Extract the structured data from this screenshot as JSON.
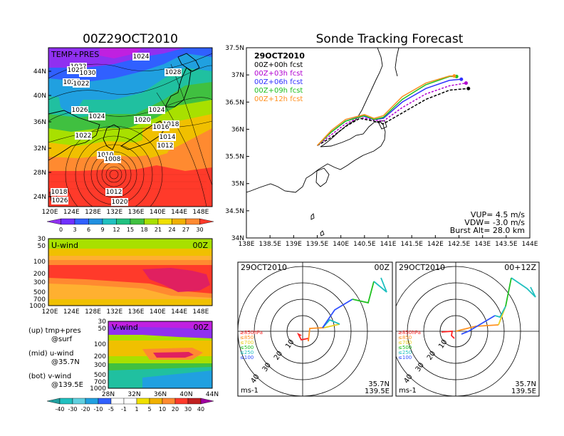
{
  "left_title": "00Z29OCT2010",
  "right_title": "Sonde Tracking Forecast",
  "temp_panel": {
    "label": "TEMP+PRES",
    "ylabels": [
      "44N",
      "40N",
      "36N",
      "32N",
      "28N",
      "24N"
    ],
    "xlabels": [
      "120E",
      "124E",
      "128E",
      "132E",
      "136E",
      "140E",
      "144E",
      "148E"
    ],
    "isobars": [
      "1024",
      "1022",
      "1026",
      "1030",
      "1024",
      "1022",
      "1028",
      "1026",
      "1024",
      "1022",
      "1024",
      "1020",
      "1018",
      "1016",
      "1014",
      "1012",
      "1010",
      "1008",
      "1012",
      "1020",
      "1018",
      "1026"
    ],
    "colorbar": [
      "0",
      "3",
      "6",
      "9",
      "12",
      "15",
      "18",
      "21",
      "24",
      "27",
      "30"
    ]
  },
  "uwind_panel": {
    "label": "U-wind",
    "time": "00Z",
    "ylabels": [
      "30",
      "50",
      "100",
      "200",
      "300",
      "500",
      "700",
      "1000"
    ],
    "xlabels": [
      "120E",
      "124E",
      "128E",
      "132E",
      "136E",
      "140E",
      "144E",
      "148E"
    ]
  },
  "vwind_panel": {
    "label": "V-wind",
    "time": "00Z",
    "ylabels": [
      "30",
      "50",
      "100",
      "200",
      "300",
      "500",
      "700",
      "1000"
    ],
    "xlabels": [
      "28N",
      "32N",
      "36N",
      "40N",
      "44N"
    ],
    "colorbar": [
      "-40",
      "-30",
      "-20",
      "-10",
      "-5",
      "-1",
      "1",
      "5",
      "10",
      "20",
      "30",
      "40"
    ]
  },
  "legend_notes": [
    "(up) tmp+pres",
    "@surf",
    "(mid) u-wind",
    "@35.7N",
    "(bot) v-wind",
    "@139.5E"
  ],
  "track_map": {
    "date": "29OCT2010",
    "forecasts": [
      {
        "label": "00Z+00h  fcst",
        "color": "#000000"
      },
      {
        "label": "00Z+03h  fcst",
        "color": "#b000d0"
      },
      {
        "label": "00Z+06h  fcst",
        "color": "#3030ff"
      },
      {
        "label": "00Z+09h  fcst",
        "color": "#20c020"
      },
      {
        "label": "00Z+12h  fcst",
        "color": "#ff9020"
      }
    ],
    "ylabels": [
      "37.5N",
      "37N",
      "36.5N",
      "36N",
      "35.5N",
      "35N",
      "34.5N",
      "34N"
    ],
    "xlabels": [
      "138E",
      "138.5E",
      "139E",
      "139.5E",
      "140E",
      "140.5E",
      "141E",
      "141.5E",
      "142E",
      "142.5E",
      "143E",
      "143.5E",
      "144E"
    ],
    "vup": "VUP=  4.5  m/s",
    "vdw": "VDW=  -3.0  m/s",
    "burst": "Burst Alt=  28.0  km"
  },
  "hodo_left": {
    "date": "29OCT2010",
    "time": "00Z",
    "rings": [
      "10",
      "20",
      "30",
      "40"
    ],
    "levels": [
      {
        "label": "≥850hPa",
        "color": "#ff2020"
      },
      {
        "label": "≤850",
        "color": "#ff9020"
      },
      {
        "label": "≤700",
        "color": "#e8d020"
      },
      {
        "label": "≤500",
        "color": "#20c020"
      },
      {
        "label": "≤250",
        "color": "#20c0c0"
      },
      {
        "label": "≤100",
        "color": "#3050ff"
      }
    ],
    "unit": "ms-1",
    "lat": "35.7N",
    "lon": "139.5E"
  },
  "hodo_right": {
    "date": "29OCT2010",
    "time": "00+12Z",
    "rings": [
      "10",
      "20",
      "30",
      "40"
    ],
    "levels": [
      {
        "label": "≥850hPa",
        "color": "#ff2020"
      },
      {
        "label": "≤850",
        "color": "#ff9020"
      },
      {
        "label": "≤700",
        "color": "#e8d020"
      },
      {
        "label": "≤500",
        "color": "#20c020"
      },
      {
        "label": "≤250",
        "color": "#20c0c0"
      },
      {
        "label": "≤100",
        "color": "#3050ff"
      }
    ],
    "unit": "ms-1",
    "lat": "35.7N",
    "lon": "139.5E"
  },
  "chart_data": [
    {
      "type": "line",
      "title": "Sonde Tracking Forecast",
      "xlim": [
        138,
        144
      ],
      "ylim": [
        34,
        37.5
      ],
      "series": [
        {
          "name": "00Z+00h  fcst",
          "x": [
            139.5,
            139.8,
            140.1,
            140.4,
            140.7,
            140.9,
            141.3,
            141.8,
            142.3,
            142.7
          ],
          "y": [
            35.7,
            35.85,
            36.05,
            36.2,
            36.15,
            36.1,
            36.3,
            36.55,
            36.72,
            36.75
          ]
        },
        {
          "name": "00Z+03h  fcst",
          "x": [
            139.5,
            139.8,
            140.1,
            140.4,
            140.7,
            140.9,
            141.3,
            141.8,
            142.3,
            142.65
          ],
          "y": [
            35.7,
            35.9,
            36.1,
            36.22,
            36.17,
            36.15,
            36.4,
            36.65,
            36.8,
            36.85
          ]
        },
        {
          "name": "00Z+06h  fcst",
          "x": [
            139.5,
            139.8,
            140.1,
            140.45,
            140.7,
            140.9,
            141.3,
            141.8,
            142.3,
            142.55
          ],
          "y": [
            35.7,
            35.95,
            36.15,
            36.25,
            36.18,
            36.2,
            36.5,
            36.75,
            36.9,
            36.92
          ]
        },
        {
          "name": "00Z+09h  fcst",
          "x": [
            139.5,
            139.8,
            140.1,
            140.5,
            140.7,
            140.9,
            141.3,
            141.8,
            142.3,
            142.45
          ],
          "y": [
            35.7,
            35.95,
            36.15,
            36.25,
            36.18,
            36.22,
            36.55,
            36.82,
            36.97,
            36.97
          ]
        },
        {
          "name": "00Z+12h  fcst",
          "x": [
            139.5,
            139.8,
            140.1,
            140.5,
            140.7,
            140.9,
            141.3,
            141.8,
            142.3,
            142.4
          ],
          "y": [
            35.7,
            35.98,
            36.18,
            36.27,
            36.2,
            36.25,
            36.6,
            36.85,
            36.98,
            36.98
          ]
        }
      ]
    }
  ]
}
